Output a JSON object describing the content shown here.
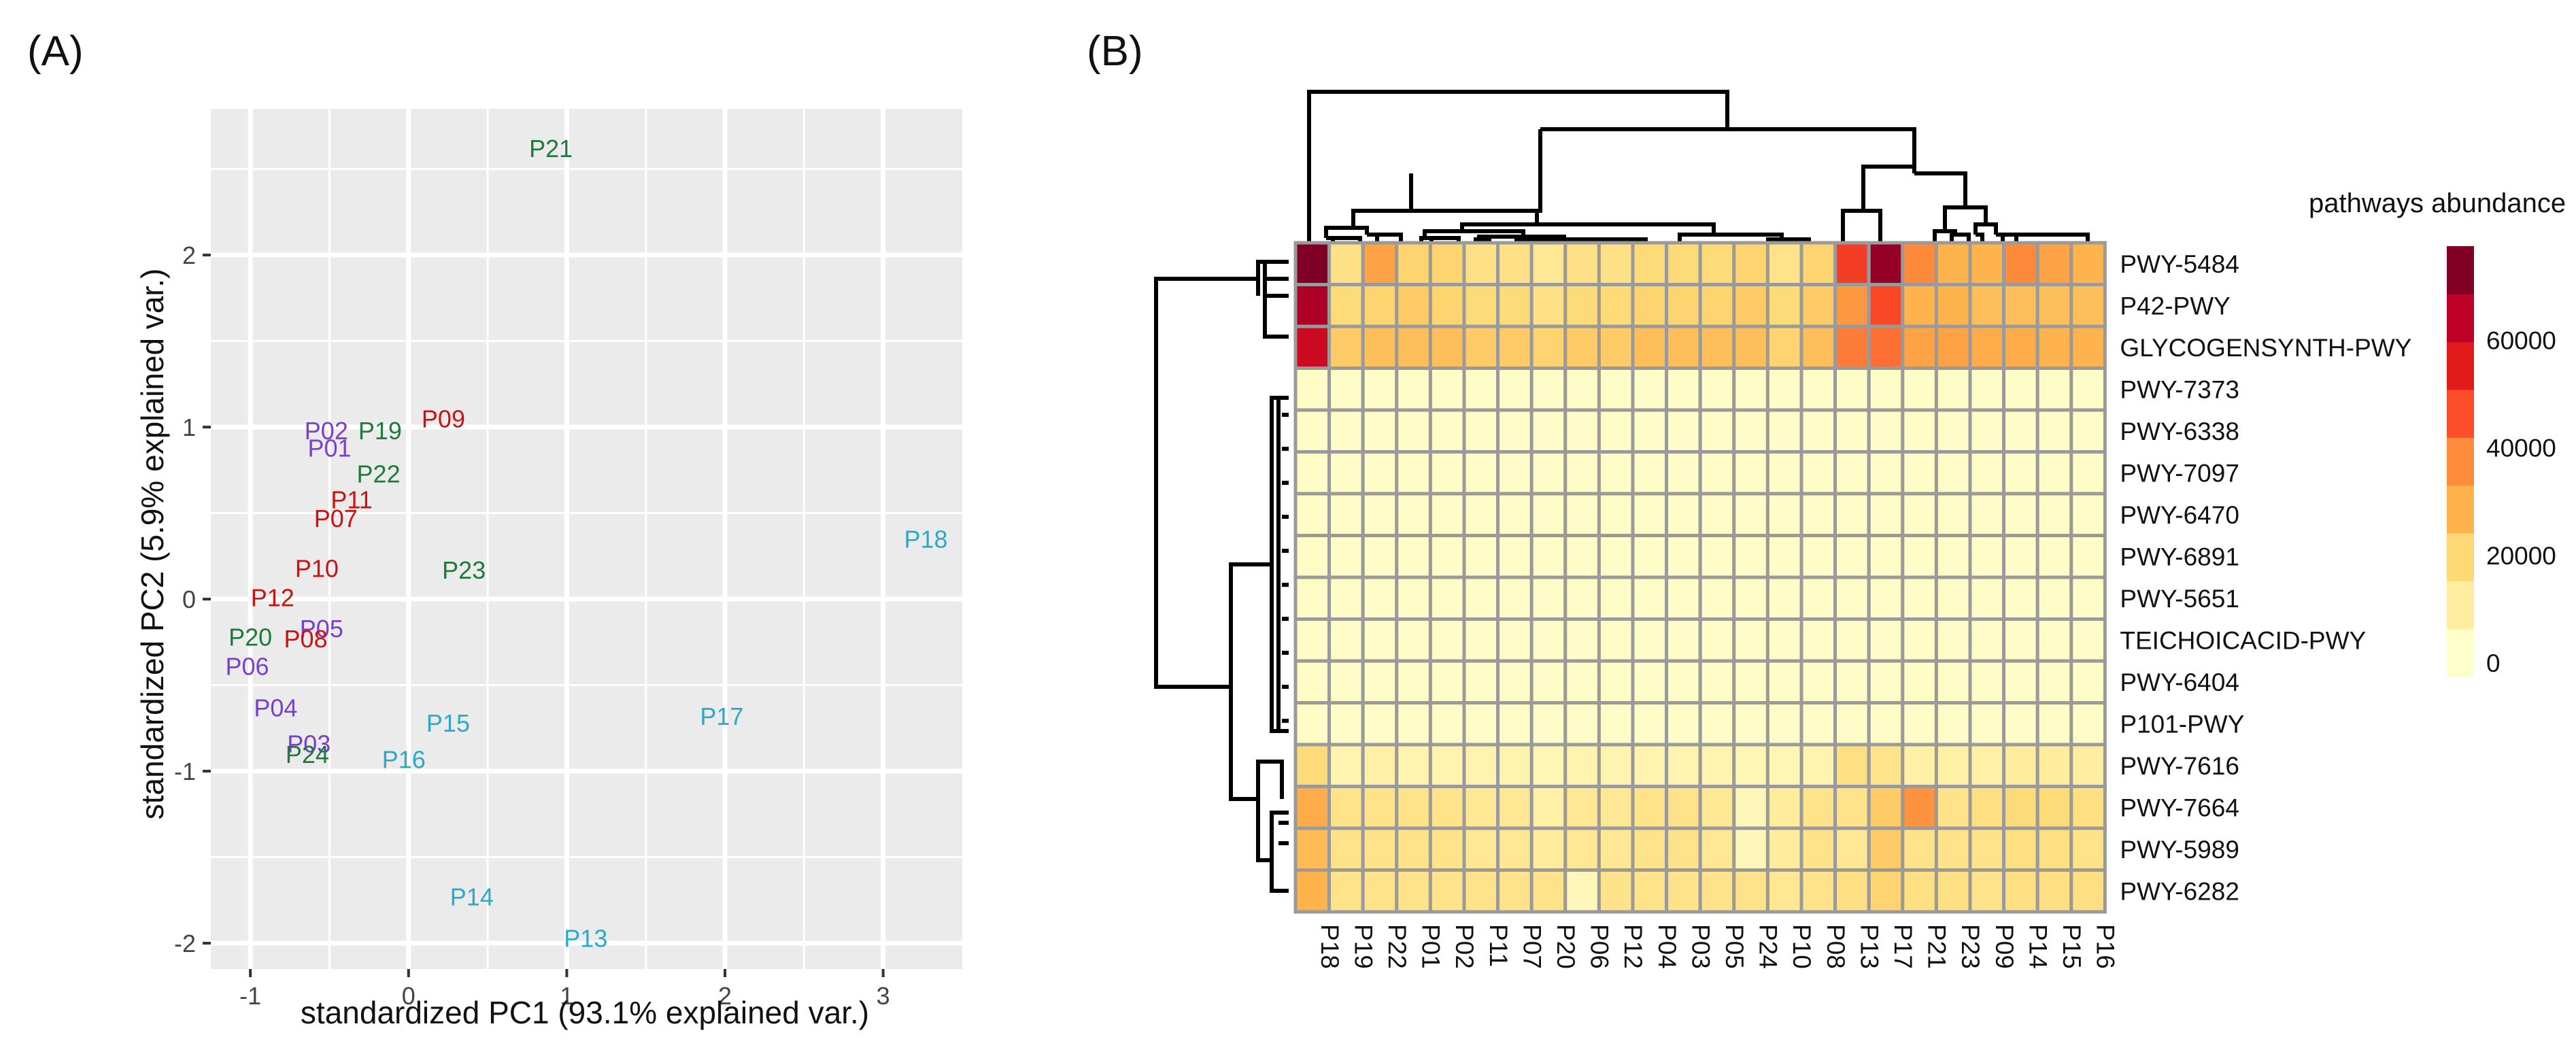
{
  "chart_data": [
    {
      "type": "scatter",
      "panel_label": "(A)",
      "xlabel": "standardized PC1 (93.1% explained var.)",
      "ylabel": "standardized PC2 (5.9% explained var.)",
      "xlim": [
        -1.25,
        3.5
      ],
      "ylim": [
        -2.15,
        2.85
      ],
      "x_ticks": [
        -1,
        0,
        1,
        2,
        3
      ],
      "y_ticks": [
        -2,
        -1,
        0,
        1,
        2
      ],
      "grid": true,
      "group_colors": {
        "red": "#cc1111",
        "green": "#1e7a3a",
        "purple": "#7a3fcf",
        "cyan": "#2aa9c9"
      },
      "points": [
        {
          "label": "P21",
          "x": 0.9,
          "y": 2.62,
          "group": "green"
        },
        {
          "label": "P09",
          "x": 0.22,
          "y": 1.05,
          "group": "red"
        },
        {
          "label": "P02",
          "x": -0.52,
          "y": 0.98,
          "group": "purple"
        },
        {
          "label": "P19",
          "x": -0.18,
          "y": 0.98,
          "group": "green"
        },
        {
          "label": "P01",
          "x": -0.5,
          "y": 0.88,
          "group": "purple"
        },
        {
          "label": "P22",
          "x": -0.19,
          "y": 0.73,
          "group": "green"
        },
        {
          "label": "P11",
          "x": -0.36,
          "y": 0.58,
          "group": "red"
        },
        {
          "label": "P07",
          "x": -0.46,
          "y": 0.47,
          "group": "red"
        },
        {
          "label": "P23",
          "x": 0.35,
          "y": 0.17,
          "group": "green"
        },
        {
          "label": "P10",
          "x": -0.58,
          "y": 0.18,
          "group": "red"
        },
        {
          "label": "P12",
          "x": -0.86,
          "y": 0.01,
          "group": "red"
        },
        {
          "label": "P18",
          "x": 3.27,
          "y": 0.35,
          "group": "cyan"
        },
        {
          "label": "P05",
          "x": -0.55,
          "y": -0.17,
          "group": "purple"
        },
        {
          "label": "P20",
          "x": -1.0,
          "y": -0.22,
          "group": "green"
        },
        {
          "label": "P08",
          "x": -0.65,
          "y": -0.23,
          "group": "red"
        },
        {
          "label": "P06",
          "x": -1.02,
          "y": -0.39,
          "group": "purple"
        },
        {
          "label": "P04",
          "x": -0.84,
          "y": -0.63,
          "group": "purple"
        },
        {
          "label": "P15",
          "x": 0.25,
          "y": -0.72,
          "group": "cyan"
        },
        {
          "label": "P17",
          "x": 1.98,
          "y": -0.68,
          "group": "cyan"
        },
        {
          "label": "P03",
          "x": -0.63,
          "y": -0.84,
          "group": "purple"
        },
        {
          "label": "P24",
          "x": -0.64,
          "y": -0.9,
          "group": "green"
        },
        {
          "label": "P16",
          "x": -0.03,
          "y": -0.93,
          "group": "cyan"
        },
        {
          "label": "P14",
          "x": 0.4,
          "y": -1.73,
          "group": "cyan"
        },
        {
          "label": "P13",
          "x": 1.12,
          "y": -1.97,
          "group": "cyan"
        }
      ]
    },
    {
      "type": "heatmap",
      "panel_label": "(B)",
      "legend_title": "pathways abundance",
      "legend_ticks": [
        0,
        20000,
        40000,
        60000
      ],
      "legend_max": 75000,
      "colormap": [
        "#ffffcc",
        "#ffeda0",
        "#fed976",
        "#feb24c",
        "#fd8d3c",
        "#fc4e2a",
        "#e31a1c",
        "#bd0026",
        "#800026"
      ],
      "columns": [
        "P18",
        "P19",
        "P22",
        "P01",
        "P02",
        "P11",
        "P07",
        "P20",
        "P06",
        "P12",
        "P04",
        "P03",
        "P05",
        "P24",
        "P10",
        "P08",
        "P13",
        "P17",
        "P21",
        "P23",
        "P09",
        "P14",
        "P15",
        "P16"
      ],
      "rows": [
        "PWY-5484",
        "P42-PWY",
        "GLYCOGENSYNTH-PWY",
        "PWY-7373",
        "PWY-6338",
        "PWY-7097",
        "PWY-6470",
        "PWY-6891",
        "PWY-5651",
        "TEICHOICACID-PWY",
        "PWY-6404",
        "P101-PWY",
        "PWY-7616",
        "PWY-7664",
        "PWY-5989",
        "PWY-6282"
      ],
      "values": [
        [
          75000,
          15000,
          32000,
          20000,
          20000,
          15000,
          15000,
          12000,
          15000,
          15000,
          18000,
          18000,
          18000,
          20000,
          14000,
          20000,
          50000,
          72000,
          38000,
          28000,
          28000,
          38000,
          32000,
          28000
        ],
        [
          68000,
          18000,
          20000,
          22000,
          20000,
          18000,
          18000,
          15000,
          18000,
          18000,
          20000,
          20000,
          20000,
          22000,
          18000,
          22000,
          35000,
          48000,
          28000,
          28000,
          25000,
          25000,
          25000,
          25000
        ],
        [
          62000,
          22000,
          25000,
          25000,
          25000,
          22000,
          22000,
          20000,
          22000,
          22000,
          25000,
          25000,
          25000,
          25000,
          20000,
          25000,
          40000,
          42000,
          32000,
          32000,
          30000,
          30000,
          28000,
          28000
        ],
        [
          1500,
          1000,
          1000,
          1000,
          1000,
          1000,
          1000,
          1000,
          1000,
          1000,
          1000,
          1000,
          1000,
          1000,
          1000,
          1000,
          1000,
          1000,
          1000,
          1000,
          1000,
          1000,
          1000,
          1000
        ],
        [
          1500,
          1000,
          1000,
          1000,
          1000,
          1000,
          1000,
          1000,
          1000,
          1000,
          1000,
          1000,
          1000,
          1000,
          1000,
          1000,
          1000,
          1000,
          1000,
          1000,
          1000,
          1000,
          1000,
          1000
        ],
        [
          1500,
          1000,
          1000,
          1000,
          1000,
          1000,
          1000,
          1000,
          1000,
          1000,
          1000,
          1000,
          1000,
          1000,
          1000,
          1000,
          1000,
          1000,
          1000,
          1000,
          1000,
          1000,
          1000,
          1000
        ],
        [
          1500,
          1000,
          1000,
          1000,
          1000,
          1000,
          1000,
          1000,
          1000,
          1000,
          1000,
          1000,
          1000,
          1000,
          1000,
          1000,
          1000,
          1000,
          1000,
          1000,
          1000,
          1000,
          1000,
          1000
        ],
        [
          1500,
          1000,
          1000,
          1000,
          1000,
          1000,
          1000,
          1000,
          1000,
          1000,
          1000,
          1000,
          1000,
          1000,
          1000,
          1000,
          1000,
          1000,
          1000,
          1000,
          1000,
          1000,
          1000,
          1000
        ],
        [
          1500,
          1000,
          1000,
          1000,
          1000,
          1000,
          1000,
          1000,
          1000,
          1000,
          1000,
          1000,
          1000,
          1000,
          1000,
          1000,
          1000,
          1000,
          1000,
          1000,
          1000,
          1000,
          1000,
          1000
        ],
        [
          1500,
          1000,
          1000,
          1000,
          1000,
          1000,
          1000,
          1000,
          1000,
          1000,
          1000,
          1000,
          1000,
          1000,
          1000,
          1000,
          1000,
          1000,
          1000,
          1000,
          1000,
          1000,
          1000,
          1000
        ],
        [
          1500,
          1000,
          1000,
          1000,
          1000,
          1000,
          1000,
          1000,
          1000,
          1000,
          1000,
          1000,
          1000,
          1000,
          1000,
          1000,
          1000,
          1000,
          1000,
          1000,
          1000,
          1000,
          1000,
          1000
        ],
        [
          1500,
          1000,
          1000,
          1000,
          1000,
          1000,
          1000,
          1000,
          1000,
          1000,
          1000,
          1000,
          1000,
          1000,
          1000,
          1000,
          1000,
          1000,
          1000,
          1000,
          1000,
          1000,
          1000,
          1000
        ],
        [
          18000,
          6000,
          8000,
          6000,
          6000,
          6000,
          6000,
          5000,
          6000,
          6000,
          6000,
          6000,
          6000,
          5000,
          5000,
          6000,
          16000,
          14000,
          8000,
          8000,
          8000,
          10000,
          10000,
          9000
        ],
        [
          30000,
          14000,
          14000,
          14000,
          14000,
          12000,
          12000,
          8000,
          12000,
          12000,
          14000,
          14000,
          12000,
          4000,
          10000,
          14000,
          14000,
          22000,
          36000,
          14000,
          16000,
          18000,
          18000,
          16000
        ],
        [
          26000,
          14000,
          14000,
          14000,
          14000,
          12000,
          12000,
          10000,
          12000,
          12000,
          14000,
          14000,
          12000,
          4000,
          10000,
          14000,
          12000,
          22000,
          14000,
          14000,
          14000,
          16000,
          16000,
          14000
        ],
        [
          28000,
          14000,
          14000,
          14000,
          14000,
          14000,
          14000,
          14000,
          4000,
          14000,
          14000,
          14000,
          14000,
          14000,
          12000,
          14000,
          16000,
          20000,
          16000,
          16000,
          14000,
          16000,
          16000,
          16000
        ]
      ]
    }
  ]
}
